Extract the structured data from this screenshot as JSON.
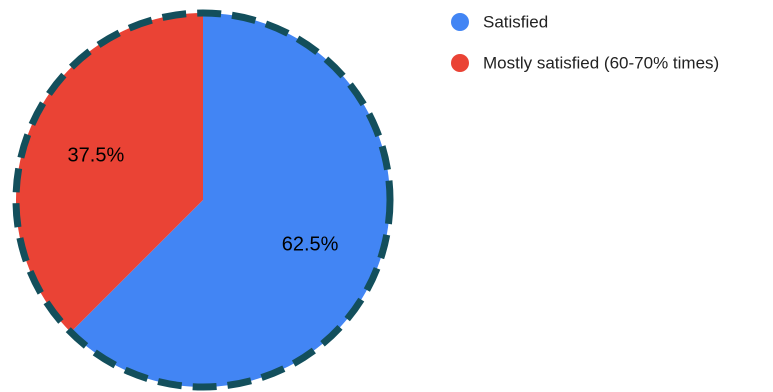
{
  "chart_data": {
    "type": "pie",
    "slices": [
      {
        "label": "Satisfied",
        "value": 62.5,
        "display": "62.5%",
        "color": "#4285f4"
      },
      {
        "label": "Mostly satisfied (60-70% times)",
        "value": 37.5,
        "display": "37.5%",
        "color": "#ea4335"
      }
    ],
    "outline_color": "#134f5c",
    "legend_position": "top-right",
    "start_angle": "12 o'clock",
    "direction": "clockwise"
  }
}
